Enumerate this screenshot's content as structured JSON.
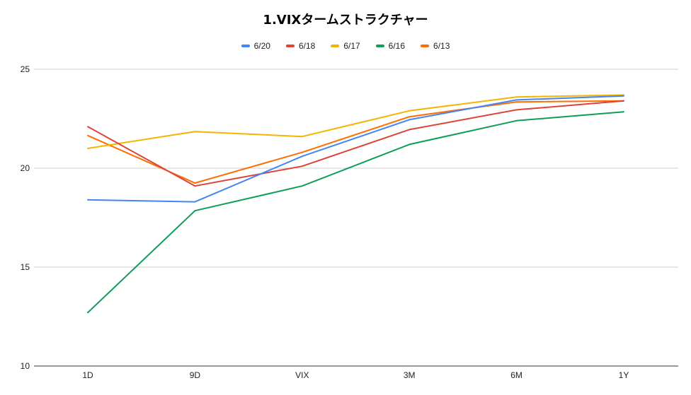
{
  "chart_data": {
    "type": "line",
    "title": "1.VIXタームストラクチャー",
    "xlabel": "",
    "ylabel": "",
    "categories": [
      "1D",
      "9D",
      "VIX",
      "3M",
      "6M",
      "1Y"
    ],
    "ylim": [
      10,
      25
    ],
    "yticks": [
      10,
      15,
      20,
      25
    ],
    "grid": true,
    "legend_position": "top",
    "series": [
      {
        "name": "6/20",
        "color": "#4285f4",
        "values": [
          18.4,
          18.3,
          20.6,
          22.45,
          23.45,
          23.65
        ]
      },
      {
        "name": "6/18",
        "color": "#db4437",
        "values": [
          22.1,
          19.1,
          20.1,
          21.95,
          22.95,
          23.4
        ]
      },
      {
        "name": "6/17",
        "color": "#f4b400",
        "values": [
          21.0,
          21.85,
          21.6,
          22.9,
          23.6,
          23.7
        ]
      },
      {
        "name": "6/16",
        "color": "#0f9d58",
        "values": [
          12.7,
          17.85,
          19.1,
          21.2,
          22.4,
          22.85
        ]
      },
      {
        "name": "6/13",
        "color": "#ff6d00",
        "values": [
          21.65,
          19.25,
          20.8,
          22.6,
          23.35,
          23.4
        ]
      }
    ]
  }
}
